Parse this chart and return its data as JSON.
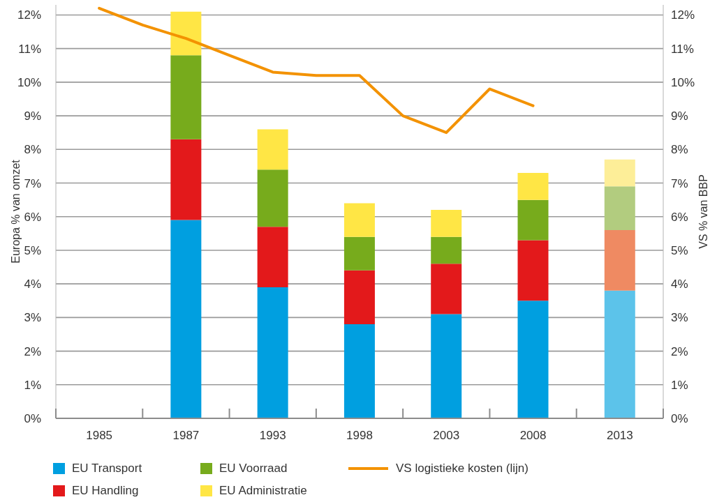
{
  "chart_data": {
    "type": "bar",
    "ylabel": "Europa % van omzet",
    "y2label": "VS % van BBP",
    "categories": [
      "1985",
      null,
      "1987",
      null,
      "1993",
      null,
      "1998",
      null,
      "2003",
      null,
      "2008",
      null,
      "2013"
    ],
    "series": [
      {
        "name": "EU Transport",
        "color": "#009fe0",
        "colors": [
          "#009fe0",
          "#009fe0",
          "#009fe0",
          "#009fe0",
          "#009fe0",
          "#009fe0",
          "#009fe0",
          "#009fe0",
          "#009fe0",
          "#009fe0",
          "#009fe0",
          "#009fe0",
          "#5cc3ea"
        ],
        "values": [
          null,
          null,
          5.9,
          null,
          3.9,
          null,
          2.8,
          null,
          3.1,
          null,
          3.5,
          null,
          3.8
        ]
      },
      {
        "name": "EU Handling",
        "color": "#e3191b",
        "colors": [
          "#e3191b",
          "#e3191b",
          "#e3191b",
          "#e3191b",
          "#e3191b",
          "#e3191b",
          "#e3191b",
          "#e3191b",
          "#e3191b",
          "#e3191b",
          "#e3191b",
          "#e3191b",
          "#ef8a62"
        ],
        "values": [
          null,
          null,
          2.4,
          null,
          1.8,
          null,
          1.6,
          null,
          1.5,
          null,
          1.8,
          null,
          1.8
        ]
      },
      {
        "name": "EU Voorraad",
        "color": "#77ab1c",
        "colors": [
          "#77ab1c",
          "#77ab1c",
          "#77ab1c",
          "#77ab1c",
          "#77ab1c",
          "#77ab1c",
          "#77ab1c",
          "#77ab1c",
          "#77ab1c",
          "#77ab1c",
          "#77ab1c",
          "#77ab1c",
          "#b2cc7f"
        ],
        "values": [
          null,
          null,
          2.5,
          null,
          1.7,
          null,
          1.0,
          null,
          0.8,
          null,
          1.2,
          null,
          1.3
        ]
      },
      {
        "name": "EU Administratie",
        "color": "#ffe645",
        "colors": [
          "#ffe645",
          "#ffe645",
          "#ffe645",
          "#ffe645",
          "#ffe645",
          "#ffe645",
          "#ffe645",
          "#ffe645",
          "#ffe645",
          "#ffe645",
          "#ffe645",
          "#ffe645",
          "#fdee98"
        ],
        "values": [
          null,
          null,
          1.3,
          null,
          1.2,
          null,
          1.0,
          null,
          0.8,
          null,
          0.8,
          null,
          0.8
        ]
      },
      {
        "name": "VS logistieke kosten (lijn)",
        "type": "line",
        "axis": "y2",
        "color": "#f39200",
        "values": [
          12.2,
          11.7,
          11.3,
          10.8,
          10.3,
          10.2,
          10.2,
          9.0,
          8.5,
          9.8,
          9.3,
          null,
          null
        ]
      }
    ],
    "stacked": true,
    "ylim": [
      0,
      12.3
    ],
    "yticks": [
      {
        "value": 0,
        "label": "0%"
      },
      {
        "value": 1,
        "label": "1%"
      },
      {
        "value": 2,
        "label": "2%"
      },
      {
        "value": 3,
        "label": "3%"
      },
      {
        "value": 4,
        "label": "4%"
      },
      {
        "value": 5,
        "label": "5%"
      },
      {
        "value": 6,
        "label": "6%"
      },
      {
        "value": 7,
        "label": "7%"
      },
      {
        "value": 8,
        "label": "8%"
      },
      {
        "value": 9,
        "label": "9%"
      },
      {
        "value": 10,
        "label": "10%"
      },
      {
        "value": 11,
        "label": "11%"
      },
      {
        "value": 12,
        "label": "12%"
      }
    ],
    "y2lim": [
      0,
      12.3
    ],
    "y2ticks": [
      {
        "value": 0,
        "label": "0%"
      },
      {
        "value": 1,
        "label": "1%"
      },
      {
        "value": 2,
        "label": "2%"
      },
      {
        "value": 3,
        "label": "3%"
      },
      {
        "value": 4,
        "label": "4%"
      },
      {
        "value": 5,
        "label": "5%"
      },
      {
        "value": 6,
        "label": "6%"
      },
      {
        "value": 7,
        "label": "7%"
      },
      {
        "value": 8,
        "label": "8%"
      },
      {
        "value": 9,
        "label": "9%"
      },
      {
        "value": 10,
        "label": "10%"
      },
      {
        "value": 11,
        "label": "11%"
      },
      {
        "value": 12,
        "label": "12%"
      }
    ],
    "grid": "y",
    "legend": "bottom",
    "marker": "none",
    "line_style": "solid"
  }
}
